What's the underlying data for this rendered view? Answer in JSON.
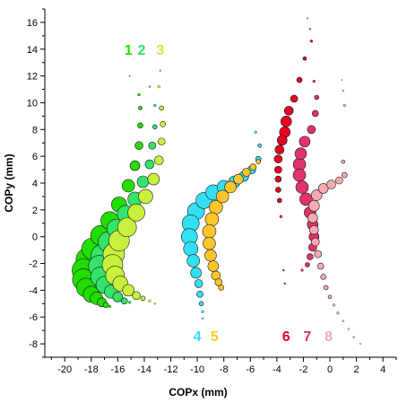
{
  "chart_data": {
    "type": "scatter",
    "xlabel": "COPx (mm)",
    "ylabel": "COPy (mm)",
    "xlim": [
      -21.5,
      5
    ],
    "ylim": [
      -9,
      17
    ],
    "xticks": [
      -20,
      -18,
      -16,
      -14,
      -12,
      -10,
      -8,
      -6,
      -4,
      -2,
      0,
      2,
      4
    ],
    "yticks": [
      -8,
      -6,
      -4,
      -2,
      0,
      2,
      4,
      6,
      8,
      10,
      12,
      14,
      16
    ],
    "series": [
      {
        "name": "1",
        "color": "#22dd00",
        "label_pos": [
          -15.2,
          14.0
        ],
        "points": [
          [
            -15.1,
            12.0,
            1
          ],
          [
            -14.4,
            10.6,
            3
          ],
          [
            -14.3,
            9.6,
            4
          ],
          [
            -14.3,
            8.3,
            6
          ],
          [
            -14.4,
            6.8,
            9
          ],
          [
            -14.7,
            5.3,
            11
          ],
          [
            -15.2,
            3.8,
            14
          ],
          [
            -15.9,
            2.4,
            17
          ],
          [
            -16.6,
            1.2,
            20
          ],
          [
            -17.3,
            0.1,
            22
          ],
          [
            -17.9,
            -0.9,
            24
          ],
          [
            -18.3,
            -1.7,
            25
          ],
          [
            -18.6,
            -2.5,
            25
          ],
          [
            -18.6,
            -3.2,
            24
          ],
          [
            -18.4,
            -3.8,
            21
          ],
          [
            -18.0,
            -4.3,
            18
          ],
          [
            -17.6,
            -4.6,
            14
          ],
          [
            -17.2,
            -4.9,
            10
          ],
          [
            -16.9,
            -5.1,
            6
          ],
          [
            -16.6,
            -5.2,
            3
          ]
        ]
      },
      {
        "name": "2",
        "color": "#33e36a",
        "label_pos": [
          -14.2,
          14.0
        ],
        "points": [
          [
            -13.6,
            11.2,
            2
          ],
          [
            -13.2,
            9.8,
            3
          ],
          [
            -13.2,
            8.2,
            5
          ],
          [
            -13.4,
            6.8,
            8
          ],
          [
            -13.6,
            5.4,
            10
          ],
          [
            -14.1,
            4.1,
            13
          ],
          [
            -14.7,
            2.8,
            16
          ],
          [
            -15.4,
            1.7,
            19
          ],
          [
            -16.1,
            0.6,
            21
          ],
          [
            -16.7,
            -0.4,
            23
          ],
          [
            -17.2,
            -1.4,
            24
          ],
          [
            -17.4,
            -2.2,
            24
          ],
          [
            -17.3,
            -3.0,
            22
          ],
          [
            -17.0,
            -3.6,
            19
          ],
          [
            -16.5,
            -4.1,
            15
          ],
          [
            -16.0,
            -4.5,
            11
          ],
          [
            -15.5,
            -4.8,
            7
          ],
          [
            -15.1,
            -4.9,
            3
          ]
        ]
      },
      {
        "name": "3",
        "color": "#c8f03c",
        "label_pos": [
          -12.8,
          14.0
        ],
        "points": [
          [
            -12.8,
            12.4,
            2
          ],
          [
            -12.9,
            11.2,
            3
          ],
          [
            -12.7,
            9.6,
            5
          ],
          [
            -12.6,
            8.4,
            6
          ],
          [
            -12.7,
            7.1,
            8
          ],
          [
            -12.9,
            5.7,
            10
          ],
          [
            -13.3,
            4.3,
            13
          ],
          [
            -13.9,
            3.0,
            16
          ],
          [
            -14.6,
            1.8,
            19
          ],
          [
            -15.3,
            0.7,
            21
          ],
          [
            -15.9,
            -0.3,
            23
          ],
          [
            -16.3,
            -1.3,
            24
          ],
          [
            -16.4,
            -2.1,
            23
          ],
          [
            -16.2,
            -2.9,
            21
          ],
          [
            -15.8,
            -3.5,
            17
          ],
          [
            -15.2,
            -4.0,
            13
          ],
          [
            -14.6,
            -4.4,
            9
          ],
          [
            -14.1,
            -4.6,
            5
          ],
          [
            -13.6,
            -4.8,
            3
          ],
          [
            -13.2,
            -5.0,
            2
          ]
        ]
      },
      {
        "name": "4",
        "color": "#33e0f2",
        "label_pos": [
          -10.0,
          -7.4
        ],
        "points": [
          [
            -5.6,
            7.8,
            3
          ],
          [
            -5.3,
            6.8,
            4
          ],
          [
            -5.4,
            5.8,
            6
          ],
          [
            -5.9,
            5.0,
            9
          ],
          [
            -6.5,
            4.5,
            11
          ],
          [
            -7.2,
            4.1,
            13
          ],
          [
            -8.0,
            3.7,
            15
          ],
          [
            -8.8,
            3.3,
            17
          ],
          [
            -9.5,
            2.7,
            18
          ],
          [
            -10.1,
            1.9,
            19
          ],
          [
            -10.5,
            1.0,
            19
          ],
          [
            -10.6,
            0.0,
            18
          ],
          [
            -10.5,
            -0.9,
            16
          ],
          [
            -10.3,
            -1.8,
            14
          ],
          [
            -10.1,
            -2.7,
            12
          ],
          [
            -9.9,
            -3.5,
            9
          ],
          [
            -9.8,
            -4.3,
            7
          ],
          [
            -9.7,
            -5.0,
            5
          ],
          [
            -9.6,
            -5.6,
            3
          ],
          [
            -9.6,
            -6.1,
            2
          ]
        ]
      },
      {
        "name": "5",
        "color": "#ffc52a",
        "label_pos": [
          -8.7,
          -7.4
        ],
        "points": [
          [
            -5.4,
            5.6,
            5
          ],
          [
            -5.8,
            5.2,
            7
          ],
          [
            -6.3,
            4.8,
            9
          ],
          [
            -6.9,
            4.3,
            11
          ],
          [
            -7.5,
            3.7,
            13
          ],
          [
            -8.1,
            3.0,
            14
          ],
          [
            -8.6,
            2.2,
            15
          ],
          [
            -8.9,
            1.3,
            15
          ],
          [
            -9.1,
            0.4,
            15
          ],
          [
            -9.1,
            -0.5,
            14
          ],
          [
            -9.0,
            -1.4,
            13
          ],
          [
            -8.8,
            -2.2,
            12
          ],
          [
            -8.6,
            -2.9,
            10
          ],
          [
            -8.4,
            -3.4,
            8
          ],
          [
            -8.2,
            -3.8,
            6
          ]
        ]
      },
      {
        "name": "6",
        "color": "#e60022",
        "label_pos": [
          -3.3,
          -7.4
        ],
        "points": [
          [
            -1.4,
            14.6,
            3
          ],
          [
            -1.9,
            13.3,
            4
          ],
          [
            -2.3,
            11.7,
            6
          ],
          [
            -2.7,
            10.3,
            8
          ],
          [
            -3.1,
            9.4,
            10
          ],
          [
            -3.3,
            8.6,
            12
          ],
          [
            -3.4,
            7.8,
            12
          ],
          [
            -3.6,
            7.2,
            11
          ],
          [
            -3.8,
            6.5,
            10
          ],
          [
            -3.9,
            5.8,
            9
          ],
          [
            -3.9,
            5.0,
            8
          ],
          [
            -3.9,
            4.3,
            7
          ],
          [
            -3.9,
            3.5,
            6
          ],
          [
            -3.8,
            2.7,
            5
          ],
          [
            -3.7,
            1.5,
            3
          ],
          [
            -3.5,
            -2.5,
            2
          ],
          [
            -3.4,
            -3.5,
            2
          ]
        ]
      },
      {
        "name": "7",
        "color": "#e0336e",
        "label_pos": [
          -1.7,
          -7.4
        ],
        "points": [
          [
            -1.7,
            16.3,
            1
          ],
          [
            -1.5,
            15.5,
            2
          ],
          [
            -1.2,
            11.6,
            3
          ],
          [
            -1.0,
            10.4,
            5
          ],
          [
            -1.1,
            9.2,
            7
          ],
          [
            -1.4,
            8.0,
            9
          ],
          [
            -1.9,
            7.1,
            12
          ],
          [
            -2.2,
            6.2,
            13
          ],
          [
            -2.3,
            5.4,
            14
          ],
          [
            -2.3,
            4.6,
            14
          ],
          [
            -2.1,
            3.7,
            14
          ],
          [
            -1.8,
            2.8,
            14
          ],
          [
            -1.5,
            1.8,
            13
          ],
          [
            -1.3,
            0.9,
            12
          ],
          [
            -1.2,
            0.0,
            11
          ],
          [
            -1.3,
            -0.8,
            9
          ],
          [
            -1.5,
            -1.5,
            7
          ],
          [
            -1.7,
            -2.1,
            5
          ],
          [
            -2.1,
            -2.5,
            3
          ]
        ]
      },
      {
        "name": "8",
        "color": "#f6aab0",
        "label_pos": [
          -0.1,
          -7.4
        ],
        "points": [
          [
            0.9,
            11.7,
            1
          ],
          [
            1.0,
            10.9,
            2
          ],
          [
            1.1,
            9.8,
            3
          ],
          [
            1.0,
            5.6,
            4
          ],
          [
            1.1,
            4.6,
            6
          ],
          [
            0.7,
            4.2,
            8
          ],
          [
            0.1,
            3.9,
            10
          ],
          [
            -0.5,
            3.6,
            11
          ],
          [
            -1.0,
            3.1,
            12
          ],
          [
            -1.2,
            2.3,
            12
          ],
          [
            -1.3,
            1.4,
            11
          ],
          [
            -1.2,
            0.5,
            10
          ],
          [
            -1.1,
            -0.4,
            9
          ],
          [
            -0.9,
            -1.3,
            8
          ],
          [
            -0.7,
            -2.2,
            7
          ],
          [
            -0.5,
            -3.0,
            6
          ],
          [
            -0.3,
            -3.8,
            5
          ],
          [
            0.0,
            -4.5,
            4
          ],
          [
            0.3,
            -5.1,
            3
          ],
          [
            0.6,
            -5.7,
            3
          ],
          [
            1.0,
            -6.3,
            2
          ],
          [
            1.4,
            -6.9,
            2
          ],
          [
            1.8,
            -7.5,
            2
          ],
          [
            2.3,
            -8.0,
            1
          ]
        ]
      }
    ]
  }
}
